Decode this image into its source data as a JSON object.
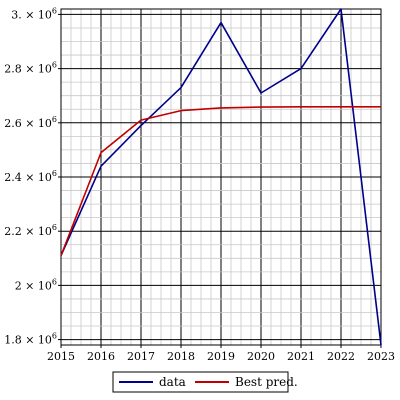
{
  "chart_data": {
    "type": "line",
    "x": [
      2015,
      2016,
      2017,
      2018,
      2019,
      2020,
      2021,
      2022,
      2023
    ],
    "xlim": [
      2015,
      2023
    ],
    "ylim": [
      1780000,
      3020000
    ],
    "x_ticks": [
      2015,
      2016,
      2017,
      2018,
      2019,
      2020,
      2021,
      2022,
      2023
    ],
    "y_ticks": [
      {
        "value": 1800000,
        "mantissa": "1.8",
        "exp": "6"
      },
      {
        "value": 2000000,
        "mantissa": "2",
        "exp": "6"
      },
      {
        "value": 2200000,
        "mantissa": "2.2",
        "exp": "6"
      },
      {
        "value": 2400000,
        "mantissa": "2.4",
        "exp": "6"
      },
      {
        "value": 2600000,
        "mantissa": "2.6",
        "exp": "6"
      },
      {
        "value": 2800000,
        "mantissa": "2.8",
        "exp": "6"
      },
      {
        "value": 3000000,
        "mantissa": "3.",
        "exp": "6"
      }
    ],
    "y_minor_step": 50000,
    "grid": true,
    "legend_position": "bottom",
    "series": [
      {
        "name": "data",
        "color": "#00008b",
        "values": [
          2110000,
          2440000,
          2590000,
          2730000,
          2970000,
          2710000,
          2800000,
          3020000,
          1780000
        ]
      },
      {
        "name": "Best pred.",
        "color": "#c00000",
        "values": [
          2110000,
          2490000,
          2610000,
          2645000,
          2655000,
          2658000,
          2659000,
          2659000,
          2659000
        ]
      }
    ],
    "title": "",
    "xlabel": "",
    "ylabel": ""
  }
}
